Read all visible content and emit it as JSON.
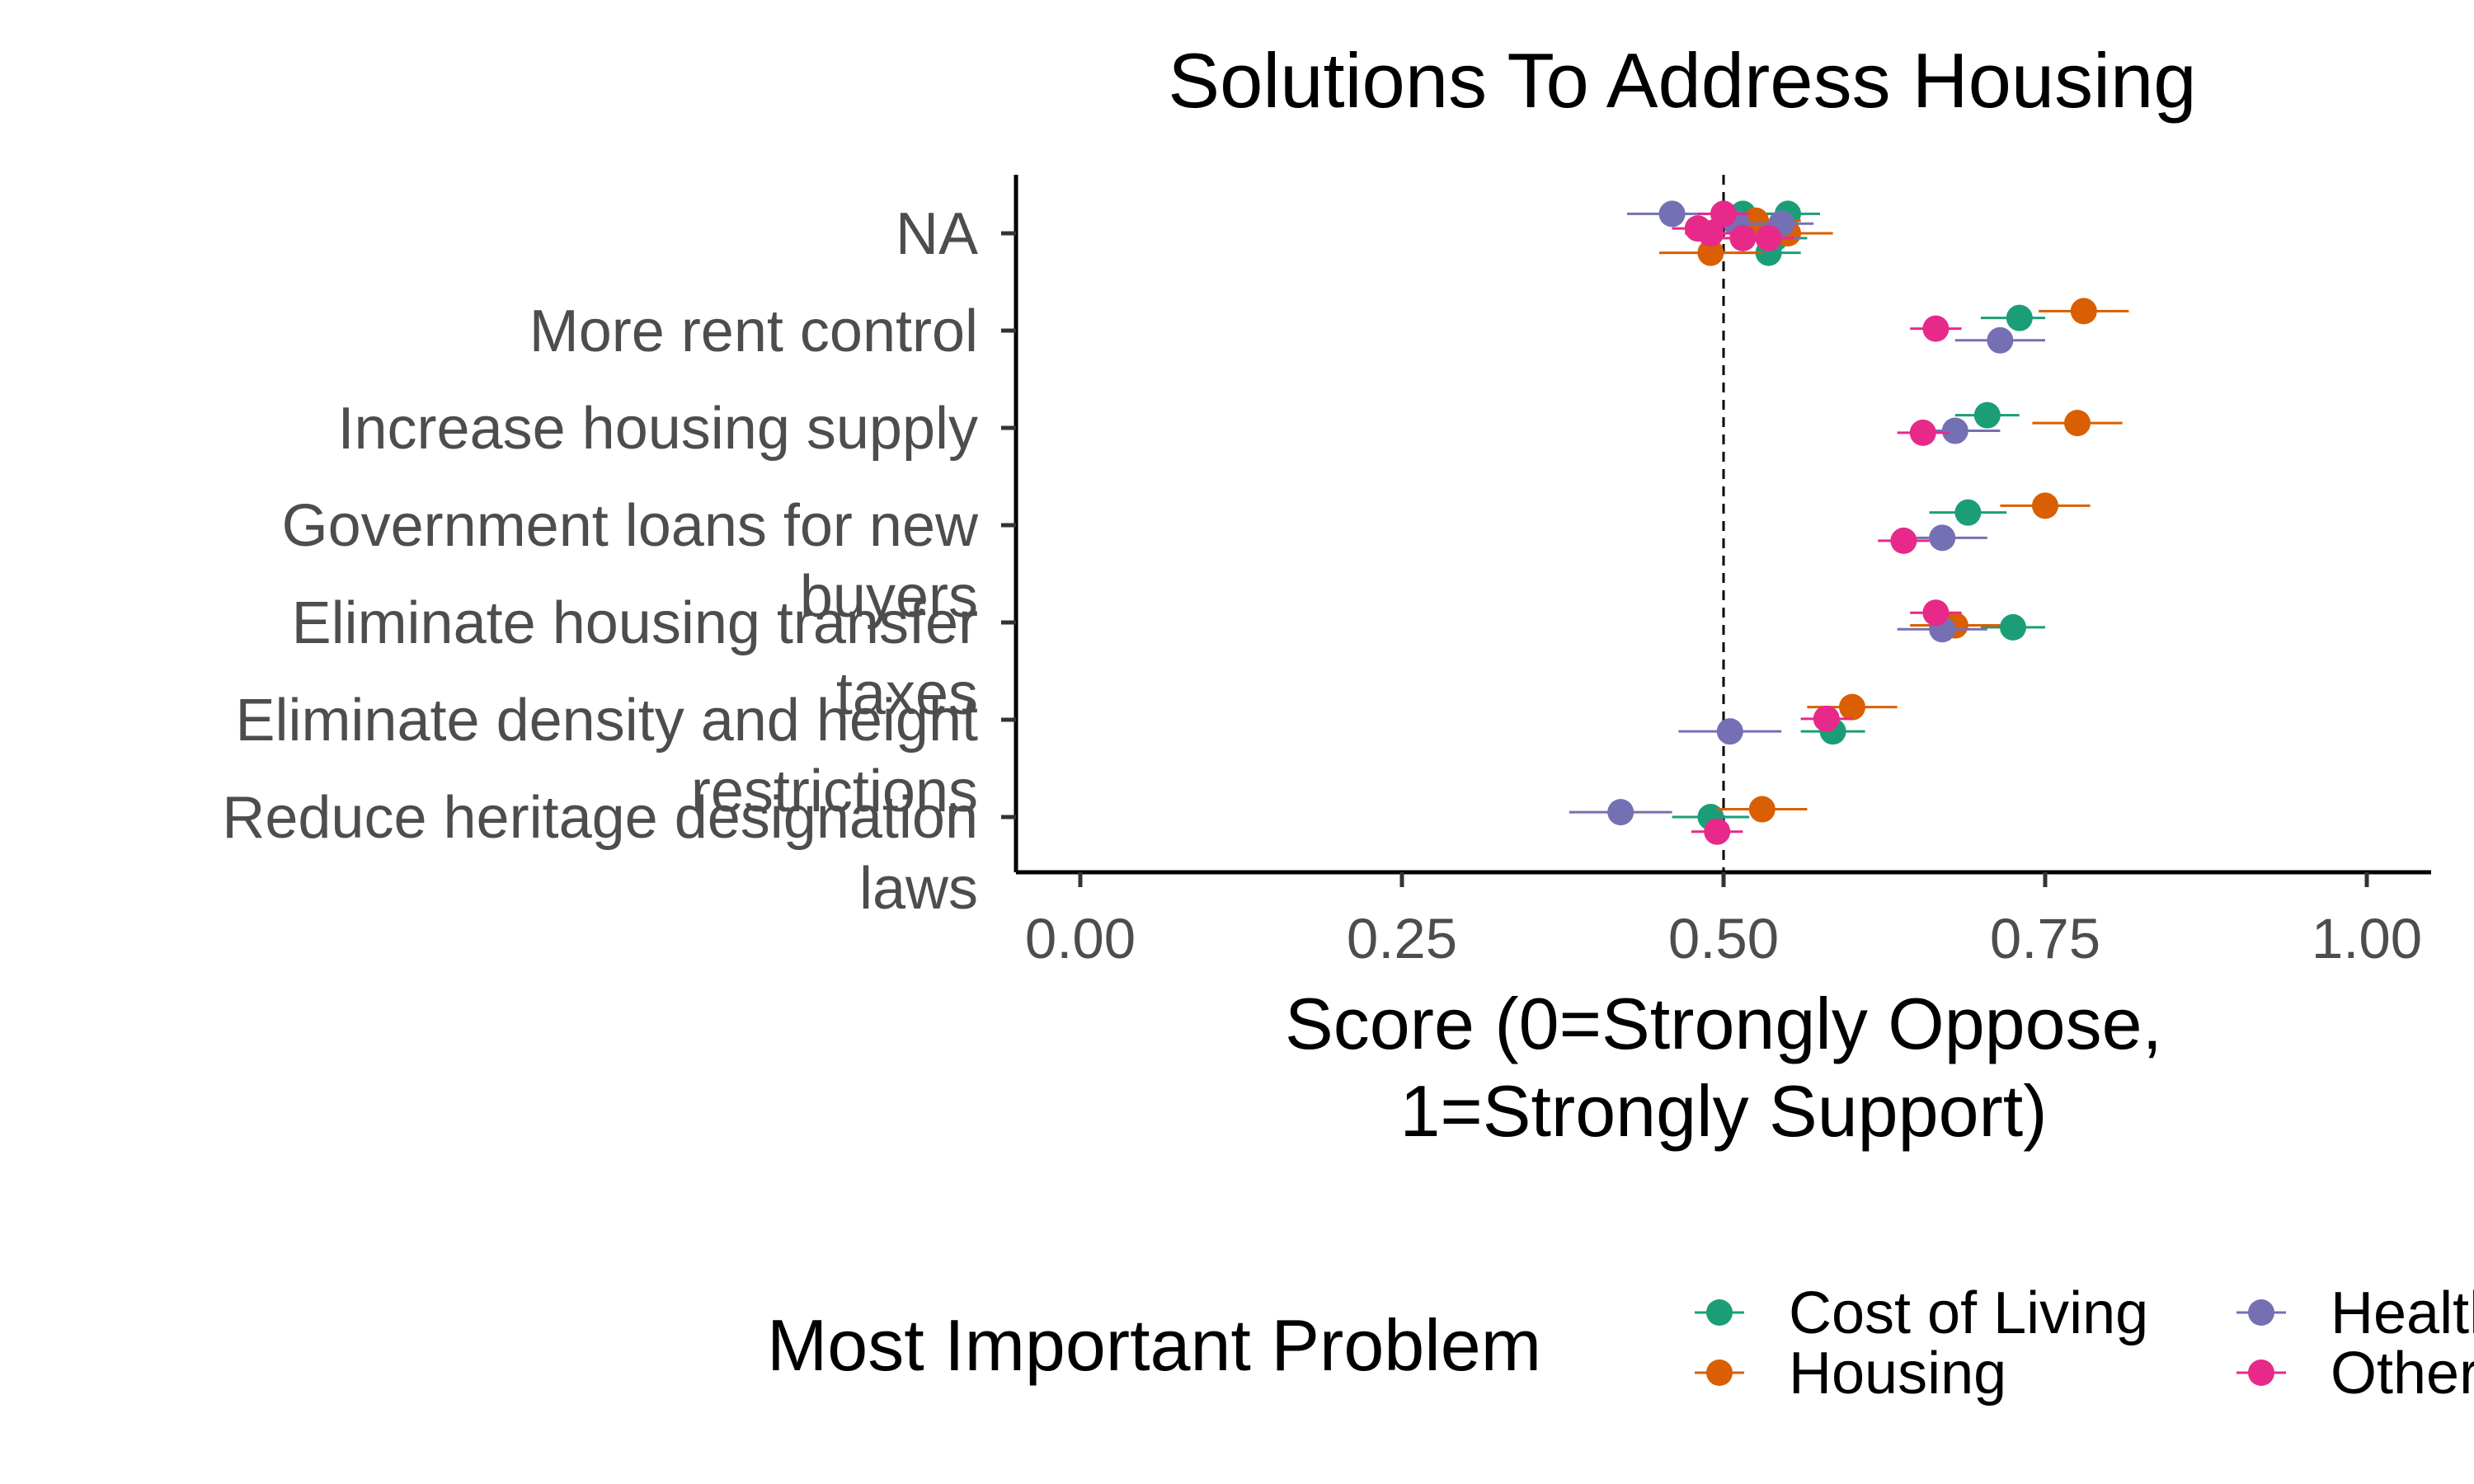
{
  "chart_data": {
    "type": "scatter",
    "title": "Solutions To Address Housing",
    "xlabel": [
      "Score (0=Strongly Oppose,",
      "1=Strongly Support)"
    ],
    "xlim": [
      -0.05,
      1.05
    ],
    "x_ticks": [
      0.0,
      0.25,
      0.5,
      0.75,
      1.0
    ],
    "x_tick_labels": [
      "0.00",
      "0.25",
      "0.50",
      "0.75",
      "1.00"
    ],
    "reference_line_x": 0.5,
    "categories": [
      {
        "lines": [
          "NA"
        ]
      },
      {
        "lines": [
          "More rent control"
        ]
      },
      {
        "lines": [
          "Increase housing supply"
        ]
      },
      {
        "lines": [
          "Government loans for new",
          "buyers"
        ]
      },
      {
        "lines": [
          "Eliminate housing transfer",
          "taxes"
        ]
      },
      {
        "lines": [
          "Eliminate density and height",
          "restrictions"
        ]
      },
      {
        "lines": [
          "Reduce heritage designation",
          "laws"
        ]
      }
    ],
    "legend": {
      "title": "Most Important Problem",
      "position": "bottom",
      "entries": [
        "Cost of Living",
        "Housing",
        "Health",
        "Other"
      ]
    },
    "series": [
      {
        "name": "Cost of Living",
        "color": "#1b9e77",
        "points": [
          {
            "cat": 1,
            "x": 0.73,
            "lo": 0.7,
            "hi": 0.75,
            "offset": -0.13
          },
          {
            "cat": 2,
            "x": 0.705,
            "lo": 0.68,
            "hi": 0.73,
            "offset": -0.13
          },
          {
            "cat": 3,
            "x": 0.69,
            "lo": 0.66,
            "hi": 0.72,
            "offset": -0.13
          },
          {
            "cat": 4,
            "x": 0.725,
            "lo": 0.7,
            "hi": 0.75,
            "offset": 0.05
          },
          {
            "cat": 5,
            "x": 0.585,
            "lo": 0.56,
            "hi": 0.61,
            "offset": 0.12
          },
          {
            "cat": 6,
            "x": 0.49,
            "lo": 0.46,
            "hi": 0.52,
            "offset": 0.0
          }
        ]
      },
      {
        "name": "Housing",
        "color": "#d95f02",
        "points": [
          {
            "cat": 1,
            "x": 0.78,
            "lo": 0.745,
            "hi": 0.815,
            "offset": -0.2
          },
          {
            "cat": 2,
            "x": 0.775,
            "lo": 0.74,
            "hi": 0.81,
            "offset": -0.05
          },
          {
            "cat": 3,
            "x": 0.75,
            "lo": 0.715,
            "hi": 0.785,
            "offset": -0.2
          },
          {
            "cat": 4,
            "x": 0.68,
            "lo": 0.645,
            "hi": 0.715,
            "offset": 0.03
          },
          {
            "cat": 5,
            "x": 0.6,
            "lo": 0.565,
            "hi": 0.635,
            "offset": -0.13
          },
          {
            "cat": 6,
            "x": 0.53,
            "lo": 0.495,
            "hi": 0.565,
            "offset": -0.08
          }
        ]
      },
      {
        "name": "Health",
        "color": "#7570b3",
        "points": [
          {
            "cat": 1,
            "x": 0.715,
            "lo": 0.68,
            "hi": 0.75,
            "offset": 0.1
          },
          {
            "cat": 2,
            "x": 0.68,
            "lo": 0.645,
            "hi": 0.715,
            "offset": 0.03
          },
          {
            "cat": 3,
            "x": 0.67,
            "lo": 0.635,
            "hi": 0.705,
            "offset": 0.13
          },
          {
            "cat": 4,
            "x": 0.67,
            "lo": 0.635,
            "hi": 0.705,
            "offset": 0.07
          },
          {
            "cat": 5,
            "x": 0.505,
            "lo": 0.465,
            "hi": 0.545,
            "offset": 0.12
          },
          {
            "cat": 6,
            "x": 0.42,
            "lo": 0.38,
            "hi": 0.46,
            "offset": -0.05
          }
        ]
      },
      {
        "name": "Other",
        "color": "#e7298a",
        "points": [
          {
            "cat": 1,
            "x": 0.665,
            "lo": 0.645,
            "hi": 0.685,
            "offset": -0.02
          },
          {
            "cat": 2,
            "x": 0.655,
            "lo": 0.635,
            "hi": 0.675,
            "offset": 0.05
          },
          {
            "cat": 3,
            "x": 0.64,
            "lo": 0.62,
            "hi": 0.66,
            "offset": 0.16
          },
          {
            "cat": 4,
            "x": 0.665,
            "lo": 0.645,
            "hi": 0.685,
            "offset": -0.1
          },
          {
            "cat": 5,
            "x": 0.58,
            "lo": 0.56,
            "hi": 0.6,
            "offset": -0.01
          },
          {
            "cat": 6,
            "x": 0.495,
            "lo": 0.475,
            "hi": 0.515,
            "offset": 0.15
          }
        ]
      }
    ],
    "na_points": [
      {
        "series": 0,
        "x": 0.55,
        "lo": 0.525,
        "hi": 0.575,
        "offset": -0.2
      },
      {
        "series": 0,
        "x": 0.515,
        "lo": 0.49,
        "hi": 0.54,
        "offset": -0.2
      },
      {
        "series": 0,
        "x": 0.535,
        "lo": 0.51,
        "hi": 0.56,
        "offset": 0.2
      },
      {
        "series": 0,
        "x": 0.54,
        "lo": 0.515,
        "hi": 0.565,
        "offset": 0.05
      },
      {
        "series": 1,
        "x": 0.49,
        "lo": 0.45,
        "hi": 0.53,
        "offset": 0.2
      },
      {
        "series": 1,
        "x": 0.55,
        "lo": 0.515,
        "hi": 0.585,
        "offset": 0.0
      },
      {
        "series": 1,
        "x": 0.525,
        "lo": 0.49,
        "hi": 0.56,
        "offset": -0.13
      },
      {
        "series": 2,
        "x": 0.46,
        "lo": 0.425,
        "hi": 0.495,
        "offset": -0.2
      },
      {
        "series": 2,
        "x": 0.545,
        "lo": 0.52,
        "hi": 0.57,
        "offset": -0.1
      },
      {
        "series": 2,
        "x": 0.51,
        "lo": 0.48,
        "hi": 0.54,
        "offset": -0.1
      },
      {
        "series": 2,
        "x": 0.535,
        "lo": 0.51,
        "hi": 0.56,
        "offset": 0.05
      },
      {
        "series": 3,
        "x": 0.5,
        "lo": 0.48,
        "hi": 0.52,
        "offset": -0.2
      },
      {
        "series": 3,
        "x": 0.49,
        "lo": 0.47,
        "hi": 0.51,
        "offset": 0.0
      },
      {
        "series": 3,
        "x": 0.515,
        "lo": 0.495,
        "hi": 0.535,
        "offset": 0.05
      },
      {
        "series": 3,
        "x": 0.535,
        "lo": 0.515,
        "hi": 0.555,
        "offset": 0.05
      },
      {
        "series": 3,
        "x": 0.48,
        "lo": 0.46,
        "hi": 0.5,
        "offset": -0.05
      }
    ],
    "grid": false
  }
}
